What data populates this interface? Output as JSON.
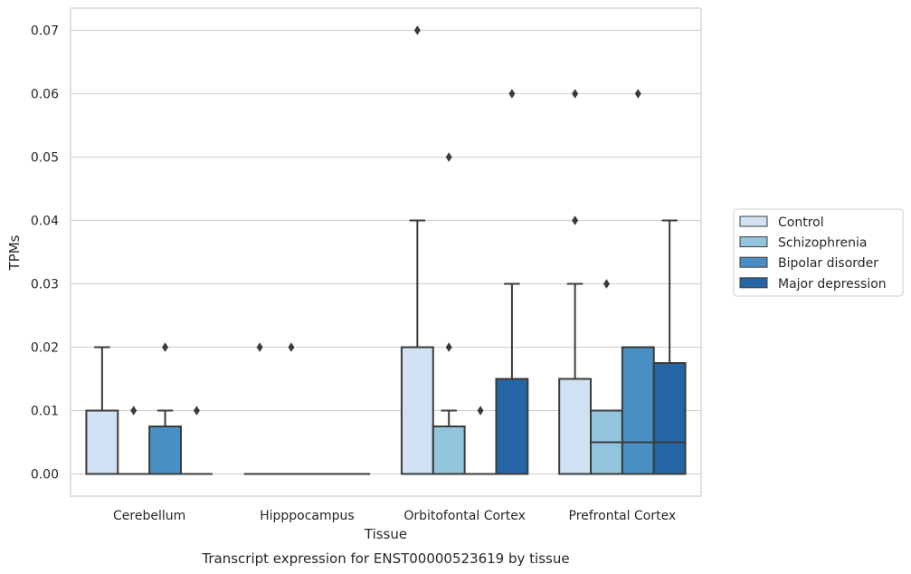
{
  "chart_data": {
    "type": "boxplot",
    "xlabel": "Tissue",
    "ylabel": "TPMs",
    "caption": "Transcript expression for ENST00000523619 by tissue",
    "categories": [
      "Cerebellum",
      "Hipppocampus",
      "Orbitofontal Cortex",
      "Prefrontal Cortex"
    ],
    "ylim": [
      -0.0035,
      0.0735
    ],
    "yticks": [
      0.0,
      0.01,
      0.02,
      0.03,
      0.04,
      0.05,
      0.06,
      0.07
    ],
    "ytick_labels": [
      "0.00",
      "0.01",
      "0.02",
      "0.03",
      "0.04",
      "0.05",
      "0.06",
      "0.07"
    ],
    "grid": "horizontal",
    "legend_position": "right",
    "series": [
      {
        "name": "Control",
        "color": "#cfe1f2",
        "boxes": [
          {
            "q1": 0,
            "median": 0,
            "q3": 0.01,
            "whisker_low": 0,
            "whisker_high": 0.02,
            "outliers": []
          },
          {
            "q1": 0,
            "median": 0,
            "q3": 0,
            "whisker_low": 0,
            "whisker_high": 0,
            "outliers": [
              0.02
            ]
          },
          {
            "q1": 0,
            "median": 0,
            "q3": 0.02,
            "whisker_low": 0,
            "whisker_high": 0.04,
            "outliers": [
              0.07
            ]
          },
          {
            "q1": 0,
            "median": 0,
            "q3": 0.015,
            "whisker_low": 0,
            "whisker_high": 0.03,
            "outliers": [
              0.04,
              0.06
            ]
          }
        ]
      },
      {
        "name": "Schizophrenia",
        "color": "#93c4de",
        "boxes": [
          {
            "q1": 0,
            "median": 0,
            "q3": 0,
            "whisker_low": 0,
            "whisker_high": 0,
            "outliers": [
              0.01
            ]
          },
          {
            "q1": 0,
            "median": 0,
            "q3": 0,
            "whisker_low": 0,
            "whisker_high": 0,
            "outliers": [
              0.02
            ]
          },
          {
            "q1": 0,
            "median": 0,
            "q3": 0.0075,
            "whisker_low": 0,
            "whisker_high": 0.01,
            "outliers": [
              0.02,
              0.05
            ]
          },
          {
            "q1": 0,
            "median": 0.005,
            "q3": 0.01,
            "whisker_low": 0,
            "whisker_high": 0.01,
            "outliers": [
              0.03
            ]
          }
        ]
      },
      {
        "name": "Bipolar disorder",
        "color": "#4a8fc3",
        "boxes": [
          {
            "q1": 0,
            "median": 0,
            "q3": 0.0075,
            "whisker_low": 0,
            "whisker_high": 0.01,
            "outliers": [
              0.02
            ]
          },
          {
            "q1": 0,
            "median": 0,
            "q3": 0,
            "whisker_low": 0,
            "whisker_high": 0,
            "outliers": []
          },
          {
            "q1": 0,
            "median": 0,
            "q3": 0,
            "whisker_low": 0,
            "whisker_high": 0,
            "outliers": [
              0.01
            ]
          },
          {
            "q1": 0,
            "median": 0.005,
            "q3": 0.02,
            "whisker_low": 0,
            "whisker_high": 0.02,
            "outliers": [
              0.06
            ]
          }
        ]
      },
      {
        "name": "Major depression",
        "color": "#2565a3",
        "boxes": [
          {
            "q1": 0,
            "median": 0,
            "q3": 0,
            "whisker_low": 0,
            "whisker_high": 0,
            "outliers": [
              0.01
            ]
          },
          {
            "q1": 0,
            "median": 0,
            "q3": 0,
            "whisker_low": 0,
            "whisker_high": 0,
            "outliers": []
          },
          {
            "q1": 0,
            "median": 0,
            "q3": 0.015,
            "whisker_low": 0,
            "whisker_high": 0.03,
            "outliers": [
              0.06
            ]
          },
          {
            "q1": 0,
            "median": 0.005,
            "q3": 0.0175,
            "whisker_low": 0,
            "whisker_high": 0.04,
            "outliers": []
          }
        ]
      }
    ]
  }
}
